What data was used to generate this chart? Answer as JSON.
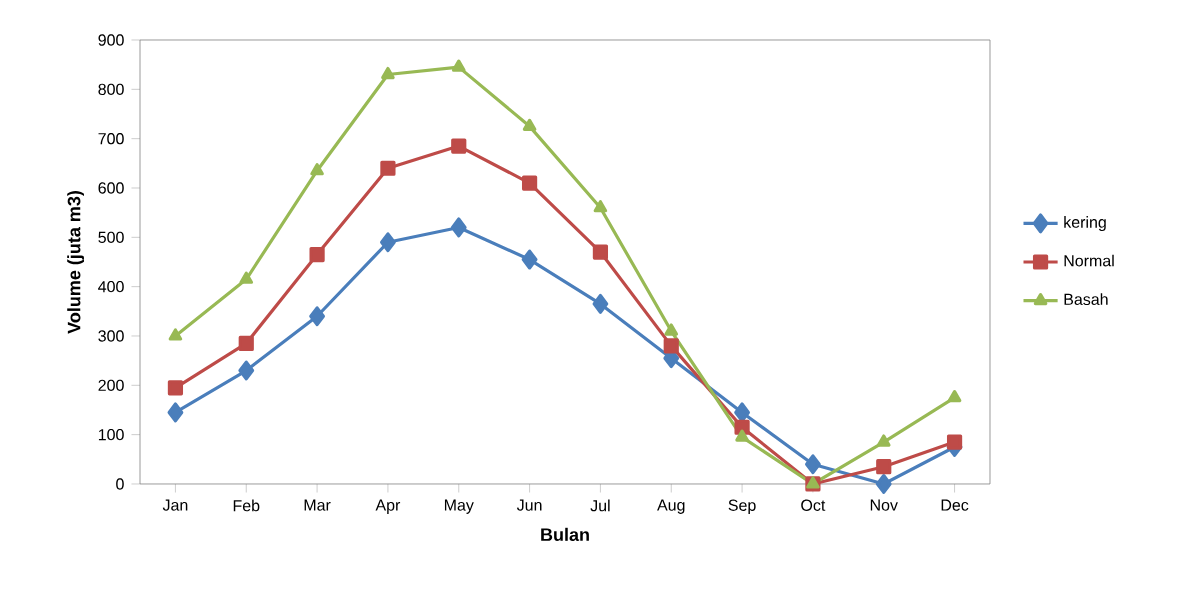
{
  "chart_data": {
    "type": "line",
    "xlabel": "Bulan",
    "ylabel": "Volume (juta m3)",
    "categories": [
      "Jan",
      "Feb",
      "Mar",
      "Apr",
      "May",
      "Jun",
      "Jul",
      "Aug",
      "Sep",
      "Oct",
      "Nov",
      "Dec"
    ],
    "series": [
      {
        "name": "kering",
        "color": "#4a7ebb",
        "marker": "diamond",
        "values": [
          145,
          230,
          340,
          490,
          520,
          455,
          365,
          255,
          145,
          40,
          0,
          75
        ]
      },
      {
        "name": "Normal",
        "color": "#be4b48",
        "marker": "square",
        "values": [
          195,
          285,
          465,
          640,
          685,
          610,
          470,
          280,
          115,
          0,
          35,
          85
        ]
      },
      {
        "name": "Basah",
        "color": "#98b954",
        "marker": "triangle",
        "values": [
          300,
          415,
          635,
          830,
          845,
          725,
          560,
          310,
          95,
          0,
          85,
          175
        ]
      }
    ],
    "ylim": [
      0,
      900
    ],
    "yticks": [
      0,
      100,
      200,
      300,
      400,
      500,
      600,
      700,
      800,
      900
    ],
    "grid": false,
    "legend": "right",
    "line_style": "solid"
  }
}
